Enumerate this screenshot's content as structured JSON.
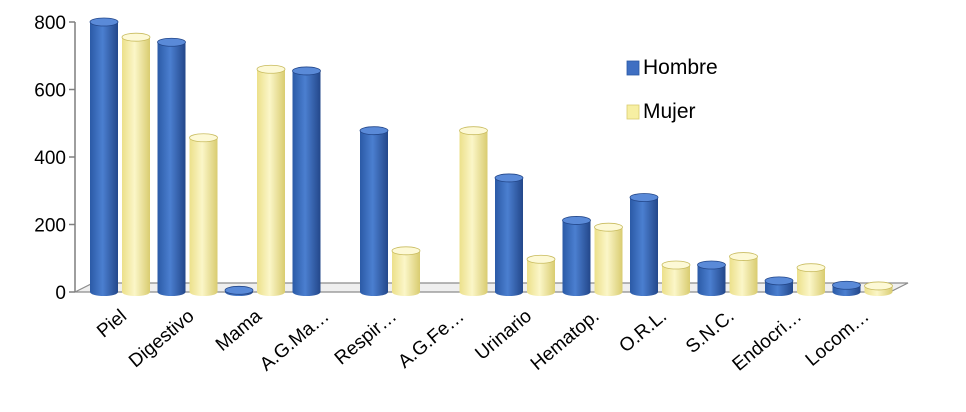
{
  "chart_data": {
    "type": "bar",
    "title": "",
    "xlabel": "",
    "ylabel": "",
    "ylim": [
      0,
      800
    ],
    "yticks": [
      "0",
      "200",
      "400",
      "600",
      "800"
    ],
    "categories": [
      "Piel",
      "Digestivo",
      "Mama",
      "A.G.Ma…",
      "Respir…",
      "A.G.Fe…",
      "Urinario",
      "Hematop.",
      "O.R.L.",
      "S.N.C.",
      "Endocri…",
      "Locom…"
    ],
    "series": [
      {
        "name": "Hombre",
        "color": "#3f6fc2",
        "values": [
          800,
          740,
          5,
          655,
          478,
          0,
          338,
          212,
          280,
          80,
          33,
          20
        ]
      },
      {
        "name": "Mujer",
        "color": "#f7efa3",
        "values": [
          755,
          457,
          660,
          0,
          122,
          478,
          97,
          192,
          80,
          105,
          72,
          18
        ]
      }
    ],
    "legend_position": "right",
    "grid": false
  }
}
